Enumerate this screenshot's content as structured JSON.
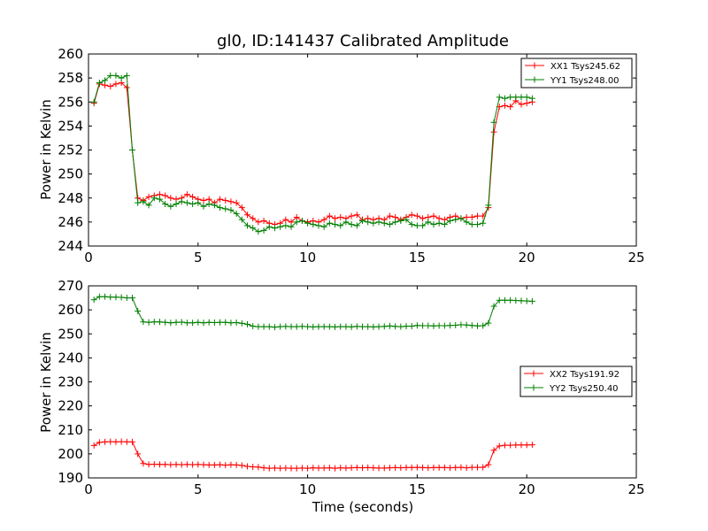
{
  "colors": {
    "xx": "#ff0000",
    "yy": "#007f00",
    "frame": "#000000",
    "background": "#ffffff"
  },
  "chart_data": [
    {
      "type": "line",
      "title": "gl0, ID:141437 Calibrated Amplitude",
      "xlabel": "",
      "ylabel": "Power in Kelvin",
      "xlim": [
        0,
        25
      ],
      "ylim": [
        244,
        260
      ],
      "xticks": [
        0,
        5,
        10,
        15,
        20,
        25
      ],
      "yticks": [
        244,
        246,
        248,
        250,
        252,
        254,
        256,
        258,
        260
      ],
      "legend_position": "top-right",
      "series": [
        {
          "name": "XX1 Tsys245.62",
          "color": "#ff0000",
          "x": [
            0.25,
            0.5,
            0.75,
            1.0,
            1.25,
            1.5,
            1.75,
            2.0,
            2.25,
            2.5,
            2.75,
            3.0,
            3.25,
            3.5,
            3.75,
            4.0,
            4.25,
            4.5,
            4.75,
            5.0,
            5.25,
            5.5,
            5.75,
            6.0,
            6.25,
            6.5,
            6.75,
            7.0,
            7.25,
            7.5,
            7.75,
            8.0,
            8.25,
            8.5,
            8.75,
            9.0,
            9.25,
            9.5,
            9.75,
            10.0,
            10.25,
            10.5,
            10.75,
            11.0,
            11.25,
            11.5,
            11.75,
            12.0,
            12.25,
            12.5,
            12.75,
            13.0,
            13.25,
            13.5,
            13.75,
            14.0,
            14.25,
            14.5,
            14.75,
            15.0,
            15.25,
            15.5,
            15.75,
            16.0,
            16.25,
            16.5,
            16.75,
            17.0,
            17.25,
            17.5,
            17.75,
            18.0,
            18.25,
            18.5,
            18.75,
            19.0,
            19.25,
            19.5,
            19.75,
            20.0,
            20.25
          ],
          "y": [
            255.9,
            257.5,
            257.4,
            257.3,
            257.5,
            257.6,
            257.2,
            252.0,
            248.0,
            247.8,
            248.1,
            248.2,
            248.3,
            248.2,
            248.0,
            247.9,
            248.0,
            248.3,
            248.1,
            247.9,
            247.8,
            247.9,
            247.6,
            247.9,
            247.8,
            247.7,
            247.6,
            247.2,
            246.6,
            246.3,
            246.0,
            246.1,
            245.9,
            245.8,
            245.9,
            246.2,
            246.0,
            246.4,
            246.1,
            246.0,
            246.1,
            246.0,
            246.2,
            246.5,
            246.3,
            246.4,
            246.3,
            246.5,
            246.6,
            246.2,
            246.3,
            246.2,
            246.3,
            246.2,
            246.5,
            246.4,
            246.2,
            246.4,
            246.6,
            246.5,
            246.3,
            246.4,
            246.5,
            246.3,
            246.2,
            246.4,
            246.5,
            246.3,
            246.4,
            246.4,
            246.5,
            246.5,
            247.2,
            253.5,
            255.6,
            255.7,
            255.6,
            256.1,
            255.8,
            255.9,
            256.0
          ]
        },
        {
          "name": "YY1 Tsys248.00",
          "color": "#007f00",
          "x": [
            0.25,
            0.5,
            0.75,
            1.0,
            1.25,
            1.5,
            1.75,
            2.0,
            2.25,
            2.5,
            2.75,
            3.0,
            3.25,
            3.5,
            3.75,
            4.0,
            4.25,
            4.5,
            4.75,
            5.0,
            5.25,
            5.5,
            5.75,
            6.0,
            6.25,
            6.5,
            6.75,
            7.0,
            7.25,
            7.5,
            7.75,
            8.0,
            8.25,
            8.5,
            8.75,
            9.0,
            9.25,
            9.5,
            9.75,
            10.0,
            10.25,
            10.5,
            10.75,
            11.0,
            11.25,
            11.5,
            11.75,
            12.0,
            12.25,
            12.5,
            12.75,
            13.0,
            13.25,
            13.5,
            13.75,
            14.0,
            14.25,
            14.5,
            14.75,
            15.0,
            15.25,
            15.5,
            15.75,
            16.0,
            16.25,
            16.5,
            16.75,
            17.0,
            17.25,
            17.5,
            17.75,
            18.0,
            18.25,
            18.5,
            18.75,
            19.0,
            19.25,
            19.5,
            19.75,
            20.0,
            20.25
          ],
          "y": [
            256.0,
            257.6,
            257.8,
            258.2,
            258.2,
            258.0,
            258.2,
            252.0,
            247.6,
            247.7,
            247.4,
            248.0,
            247.9,
            247.5,
            247.3,
            247.5,
            247.7,
            247.6,
            247.5,
            247.6,
            247.3,
            247.5,
            247.4,
            247.2,
            247.1,
            247.0,
            246.7,
            246.2,
            245.7,
            245.5,
            245.2,
            245.3,
            245.6,
            245.5,
            245.6,
            245.7,
            245.6,
            246.0,
            246.1,
            245.9,
            245.8,
            245.7,
            245.6,
            245.9,
            245.8,
            245.7,
            246.0,
            245.8,
            245.7,
            246.1,
            246.0,
            245.9,
            246.0,
            245.9,
            245.8,
            246.0,
            246.1,
            246.2,
            245.8,
            245.7,
            245.7,
            246.0,
            245.8,
            245.9,
            245.8,
            246.1,
            246.2,
            246.3,
            246.0,
            245.8,
            245.8,
            245.9,
            247.4,
            254.3,
            256.4,
            256.3,
            256.4,
            256.4,
            256.4,
            256.4,
            256.3
          ]
        }
      ]
    },
    {
      "type": "line",
      "title": "",
      "xlabel": "Time (seconds)",
      "ylabel": "Power in Kelvin",
      "xlim": [
        0,
        25
      ],
      "ylim": [
        190,
        270
      ],
      "xticks": [
        0,
        5,
        10,
        15,
        20,
        25
      ],
      "yticks": [
        190,
        200,
        210,
        220,
        230,
        240,
        250,
        260,
        270
      ],
      "legend_position": "center-right",
      "series": [
        {
          "name": "XX2 Tsys191.92",
          "color": "#ff0000",
          "x": [
            0.25,
            0.5,
            0.75,
            1.0,
            1.25,
            1.5,
            1.75,
            2.0,
            2.25,
            2.5,
            2.75,
            3.0,
            3.25,
            3.5,
            3.75,
            4.0,
            4.25,
            4.5,
            4.75,
            5.0,
            5.25,
            5.5,
            5.75,
            6.0,
            6.25,
            6.5,
            6.75,
            7.0,
            7.25,
            7.5,
            7.75,
            8.0,
            8.25,
            8.5,
            8.75,
            9.0,
            9.25,
            9.5,
            9.75,
            10.0,
            10.25,
            10.5,
            10.75,
            11.0,
            11.25,
            11.5,
            11.75,
            12.0,
            12.25,
            12.5,
            12.75,
            13.0,
            13.25,
            13.5,
            13.75,
            14.0,
            14.25,
            14.5,
            14.75,
            15.0,
            15.25,
            15.5,
            15.75,
            16.0,
            16.25,
            16.5,
            16.75,
            17.0,
            17.25,
            17.5,
            17.75,
            18.0,
            18.25,
            18.5,
            18.75,
            19.0,
            19.25,
            19.5,
            19.75,
            20.0,
            20.25
          ],
          "y": [
            203.5,
            204.8,
            205.0,
            205.1,
            205.0,
            205.1,
            205.0,
            205.0,
            200.0,
            196.0,
            195.6,
            195.7,
            195.6,
            195.6,
            195.5,
            195.6,
            195.5,
            195.6,
            195.5,
            195.6,
            195.5,
            195.4,
            195.4,
            195.5,
            195.3,
            195.5,
            195.4,
            195.2,
            194.8,
            194.6,
            194.5,
            194.2,
            194.0,
            194.1,
            194.0,
            194.1,
            194.0,
            194.0,
            194.1,
            194.0,
            194.2,
            194.1,
            194.1,
            194.2,
            194.0,
            194.2,
            194.1,
            194.2,
            194.3,
            194.2,
            194.3,
            194.2,
            194.1,
            194.1,
            194.2,
            194.3,
            194.2,
            194.3,
            194.3,
            194.4,
            194.3,
            194.2,
            194.3,
            194.3,
            194.3,
            194.2,
            194.3,
            194.4,
            194.2,
            194.4,
            194.4,
            194.4,
            195.5,
            201.5,
            203.3,
            203.6,
            203.6,
            203.7,
            203.7,
            203.7,
            203.8
          ]
        },
        {
          "name": "YY2 Tsys250.40",
          "color": "#007f00",
          "x": [
            0.25,
            0.5,
            0.75,
            1.0,
            1.25,
            1.5,
            1.75,
            2.0,
            2.25,
            2.5,
            2.75,
            3.0,
            3.25,
            3.5,
            3.75,
            4.0,
            4.25,
            4.5,
            4.75,
            5.0,
            5.25,
            5.5,
            5.75,
            6.0,
            6.25,
            6.5,
            6.75,
            7.0,
            7.25,
            7.5,
            7.75,
            8.0,
            8.25,
            8.5,
            8.75,
            9.0,
            9.25,
            9.5,
            9.75,
            10.0,
            10.25,
            10.5,
            10.75,
            11.0,
            11.25,
            11.5,
            11.75,
            12.0,
            12.25,
            12.5,
            12.75,
            13.0,
            13.25,
            13.5,
            13.75,
            14.0,
            14.25,
            14.5,
            14.75,
            15.0,
            15.25,
            15.5,
            15.75,
            16.0,
            16.25,
            16.5,
            16.75,
            17.0,
            17.25,
            17.5,
            17.75,
            18.0,
            18.25,
            18.5,
            18.75,
            19.0,
            19.25,
            19.5,
            19.75,
            20.0,
            20.25
          ],
          "y": [
            264.2,
            265.5,
            265.5,
            265.3,
            265.3,
            265.2,
            265.0,
            265.0,
            259.5,
            255.0,
            254.8,
            255.0,
            255.0,
            254.8,
            254.6,
            254.8,
            254.9,
            254.6,
            254.6,
            254.8,
            254.6,
            254.8,
            254.7,
            254.8,
            254.8,
            254.6,
            254.7,
            254.4,
            254.0,
            253.2,
            253.0,
            253.0,
            253.0,
            252.8,
            253.0,
            253.1,
            253.0,
            253.0,
            253.1,
            253.0,
            252.9,
            253.0,
            253.0,
            253.0,
            252.9,
            253.0,
            253.0,
            252.9,
            253.1,
            253.0,
            253.0,
            252.9,
            253.0,
            253.1,
            253.3,
            253.1,
            253.0,
            253.2,
            253.2,
            253.5,
            253.4,
            253.4,
            253.3,
            253.4,
            253.4,
            253.5,
            253.6,
            253.8,
            253.7,
            253.5,
            253.3,
            253.4,
            254.5,
            261.5,
            264.0,
            264.0,
            264.0,
            263.9,
            263.8,
            263.7,
            263.6
          ]
        }
      ]
    }
  ]
}
